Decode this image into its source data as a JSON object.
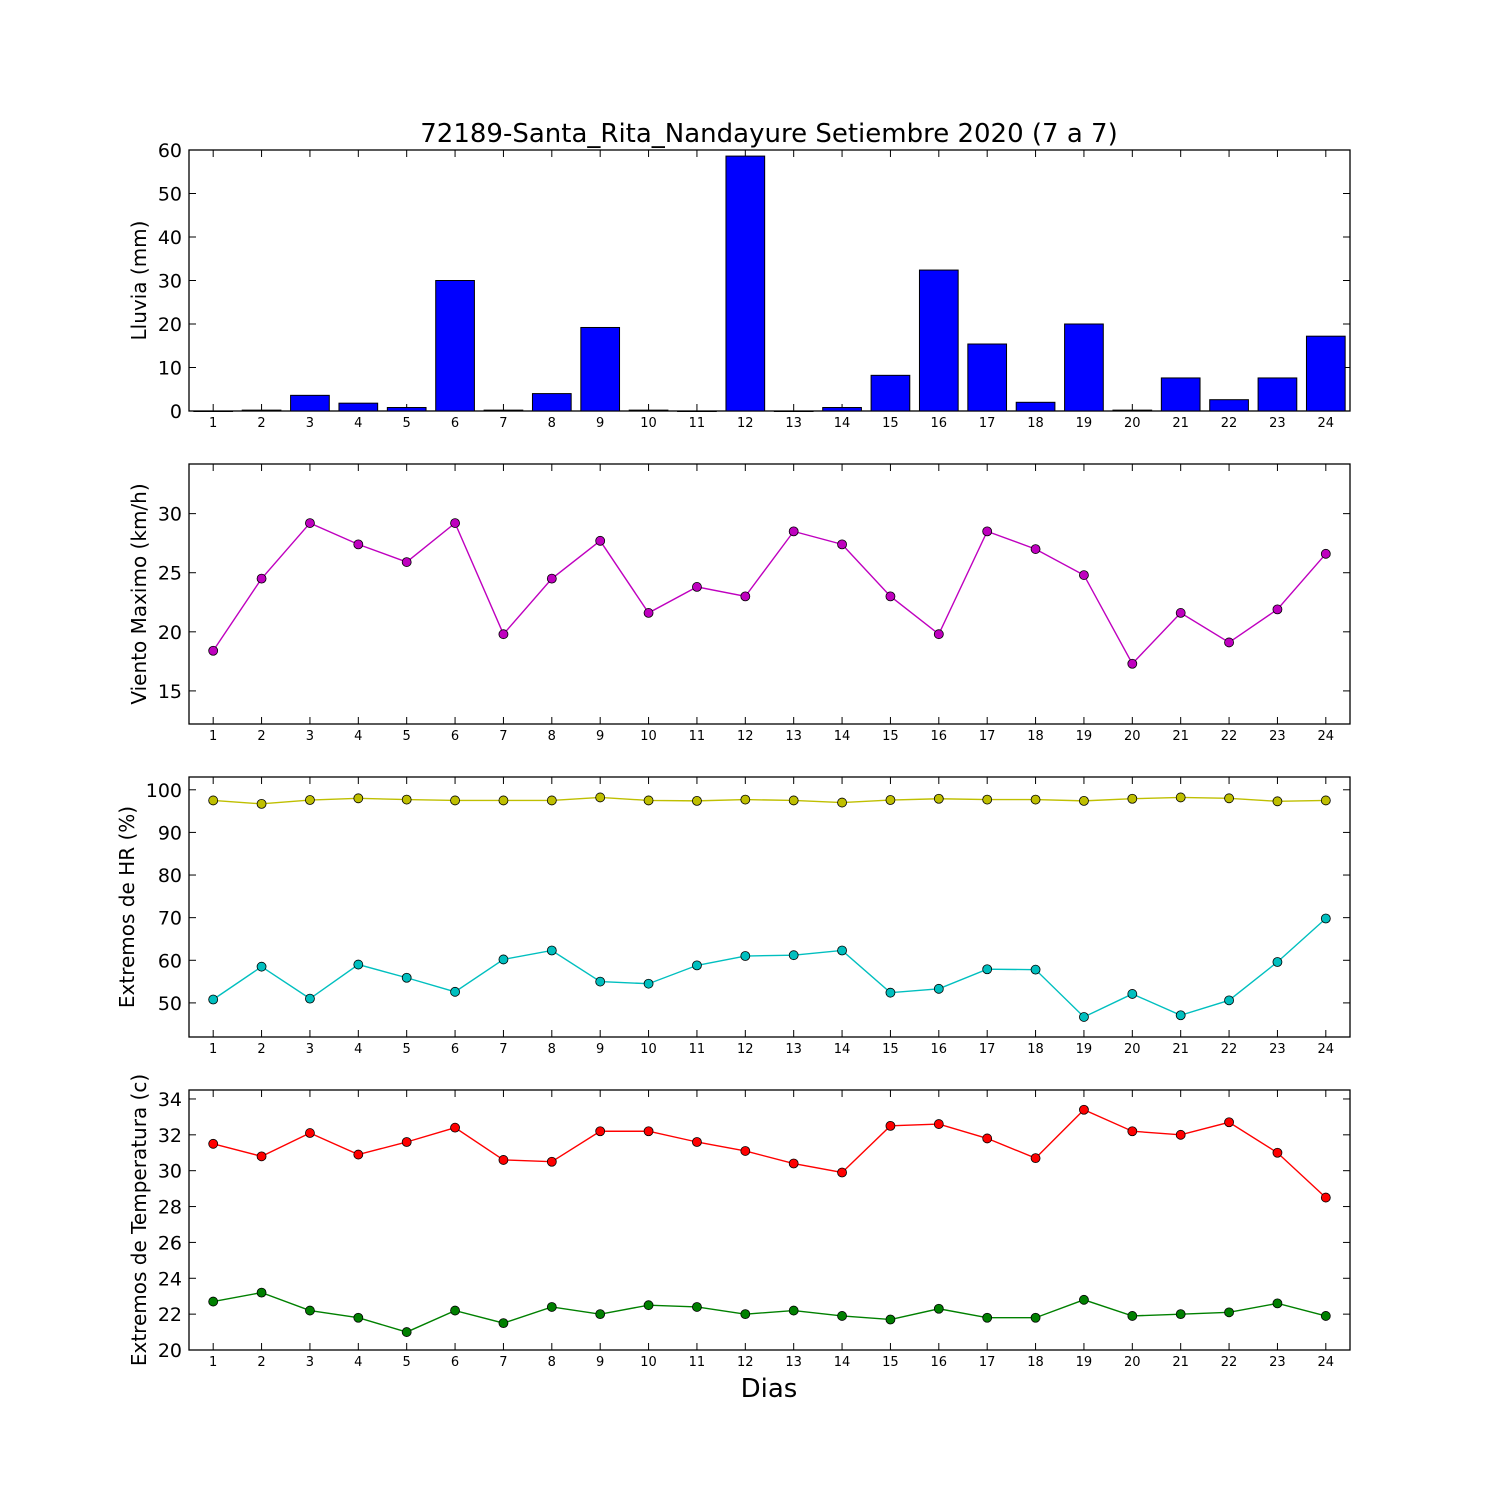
{
  "chart_data": [
    {
      "type": "bar",
      "title": "72189-Santa_Rita_Nandayure Setiembre 2020  (7 a 7)",
      "xlabel": "",
      "ylabel": "Lluvia (mm)",
      "ylim": [
        0,
        60
      ],
      "yticks": [
        0,
        10,
        20,
        30,
        40,
        50,
        60
      ],
      "categories": [
        "1",
        "2",
        "3",
        "4",
        "5",
        "6",
        "7",
        "8",
        "9",
        "10",
        "11",
        "12",
        "13",
        "14",
        "15",
        "16",
        "17",
        "18",
        "19",
        "20",
        "21",
        "22",
        "23",
        "24"
      ],
      "series": [
        {
          "color": "#0000ff",
          "values": [
            0,
            0.2,
            3.6,
            1.8,
            0.8,
            30.0,
            0.2,
            4.0,
            19.2,
            0.2,
            0,
            58.6,
            0,
            0.8,
            8.2,
            32.4,
            15.4,
            2.0,
            20.0,
            0.2,
            7.6,
            2.6,
            7.6,
            17.2
          ]
        }
      ]
    },
    {
      "type": "line",
      "ylabel": "Viento Maximo (km/h)",
      "ylim": [
        12.2,
        34.2
      ],
      "yticks": [
        15,
        20,
        25,
        30
      ],
      "categories": [
        "1",
        "2",
        "3",
        "4",
        "5",
        "6",
        "7",
        "8",
        "9",
        "10",
        "11",
        "12",
        "13",
        "14",
        "15",
        "16",
        "17",
        "18",
        "19",
        "20",
        "21",
        "22",
        "23",
        "24"
      ],
      "series": [
        {
          "color": "#bf00bf",
          "values": [
            18.4,
            24.5,
            29.2,
            27.4,
            25.9,
            29.2,
            19.8,
            24.5,
            27.7,
            21.6,
            23.8,
            23.0,
            28.5,
            27.4,
            23.0,
            19.8,
            28.5,
            27.0,
            24.8,
            17.3,
            21.6,
            19.1,
            21.9,
            26.6
          ]
        }
      ]
    },
    {
      "type": "line",
      "ylabel": "Extremos de HR (%)",
      "ylim": [
        42,
        103
      ],
      "yticks": [
        50,
        60,
        70,
        80,
        90,
        100
      ],
      "categories": [
        "1",
        "2",
        "3",
        "4",
        "5",
        "6",
        "7",
        "8",
        "9",
        "10",
        "11",
        "12",
        "13",
        "14",
        "15",
        "16",
        "17",
        "18",
        "19",
        "20",
        "21",
        "22",
        "23",
        "24"
      ],
      "series": [
        {
          "color": "#bfbf00",
          "values": [
            97.5,
            96.7,
            97.6,
            98.0,
            97.7,
            97.5,
            97.5,
            97.5,
            98.2,
            97.5,
            97.4,
            97.7,
            97.5,
            97.0,
            97.6,
            97.9,
            97.7,
            97.7,
            97.4,
            97.9,
            98.2,
            98.0,
            97.3,
            97.5
          ]
        },
        {
          "color": "#00bfbf",
          "values": [
            50.8,
            58.5,
            51.0,
            59.0,
            55.9,
            52.6,
            60.2,
            62.3,
            55.0,
            54.5,
            58.8,
            61.0,
            61.2,
            62.3,
            52.4,
            53.3,
            57.9,
            57.8,
            46.7,
            52.1,
            47.1,
            50.6,
            59.6,
            69.8
          ]
        }
      ]
    },
    {
      "type": "line",
      "xlabel": "Dias",
      "ylabel": "Extremos de Temperatura (c)",
      "ylim": [
        20,
        34.5
      ],
      "yticks": [
        20,
        22,
        24,
        26,
        28,
        30,
        32,
        34
      ],
      "categories": [
        "1",
        "2",
        "3",
        "4",
        "5",
        "6",
        "7",
        "8",
        "9",
        "10",
        "11",
        "12",
        "13",
        "14",
        "15",
        "16",
        "17",
        "18",
        "19",
        "20",
        "21",
        "22",
        "23",
        "24"
      ],
      "series": [
        {
          "color": "#ff0000",
          "values": [
            31.5,
            30.8,
            32.1,
            30.9,
            31.6,
            32.4,
            30.6,
            30.5,
            32.2,
            32.2,
            31.6,
            31.1,
            30.4,
            29.9,
            32.5,
            32.6,
            31.8,
            30.7,
            33.4,
            32.2,
            32.0,
            32.7,
            31.0,
            28.5
          ]
        },
        {
          "color": "#008000",
          "values": [
            22.7,
            23.2,
            22.2,
            21.8,
            21.0,
            22.2,
            21.5,
            22.4,
            22.0,
            22.5,
            22.4,
            22.0,
            22.2,
            21.9,
            21.7,
            22.3,
            21.8,
            21.8,
            22.8,
            21.9,
            22.0,
            22.1,
            22.6,
            21.9
          ]
        }
      ]
    }
  ]
}
